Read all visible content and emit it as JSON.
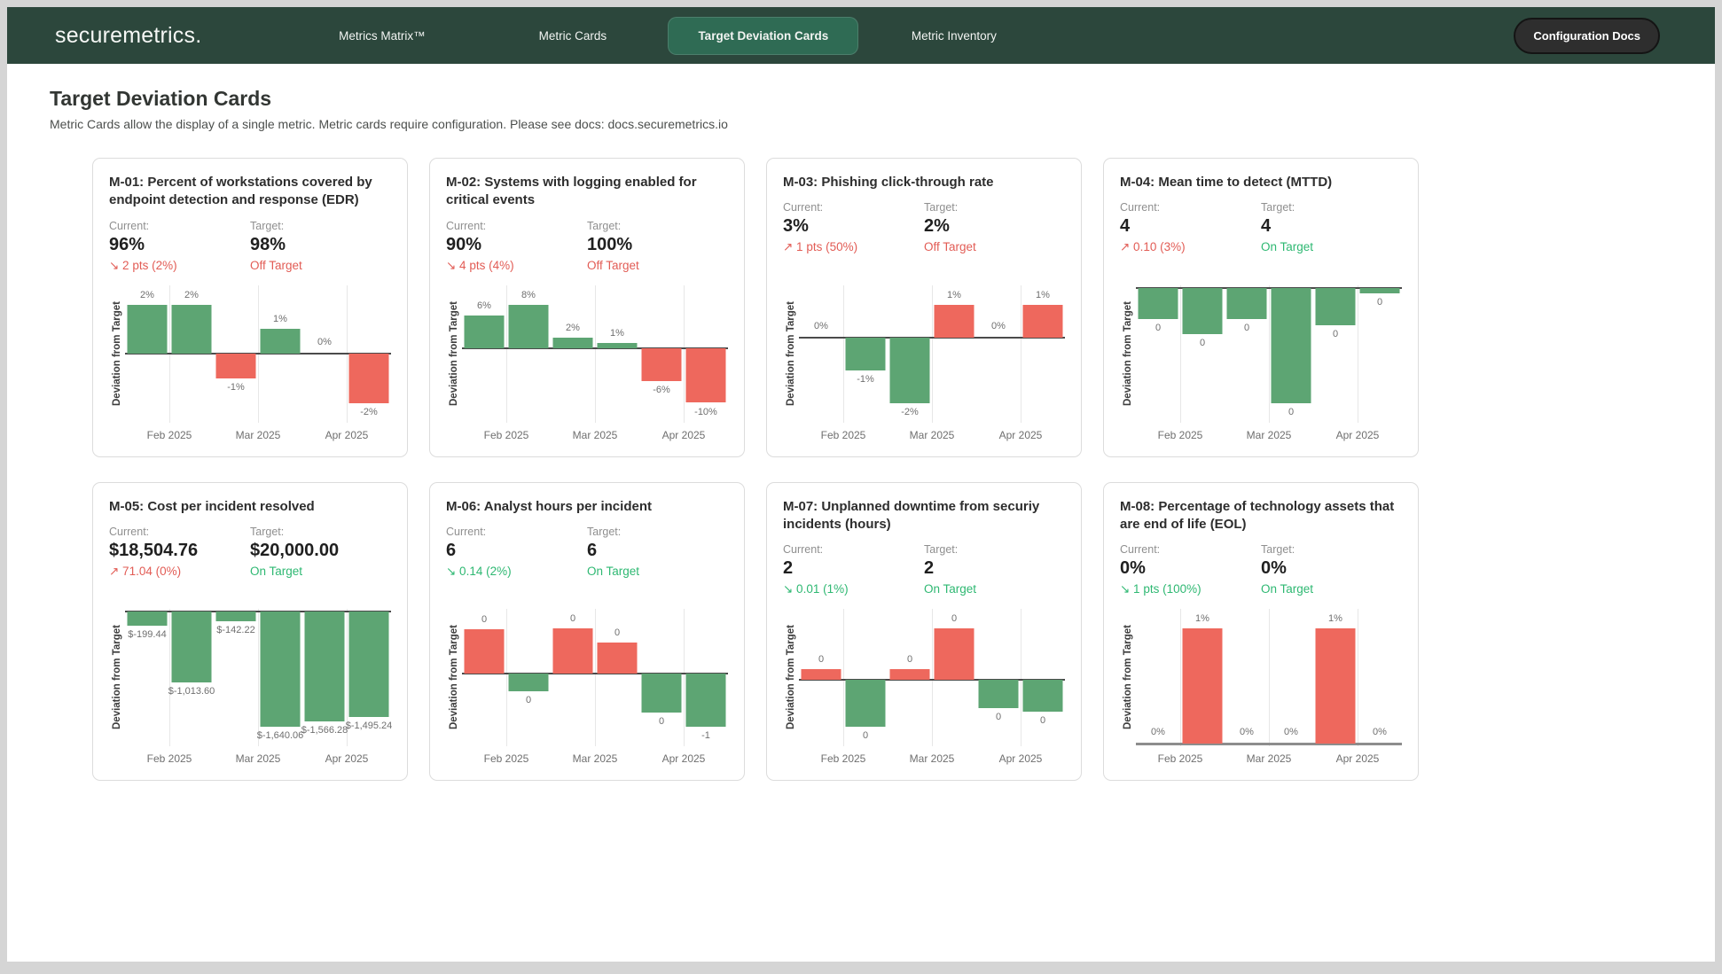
{
  "navbar": {
    "logo": "securemetrics.",
    "tabs": [
      {
        "label": "Metrics Matrix™",
        "active": false
      },
      {
        "label": "Metric Cards",
        "active": false
      },
      {
        "label": "Target Deviation Cards",
        "active": true
      },
      {
        "label": "Metric Inventory",
        "active": false
      }
    ],
    "docs_button": "Configuration Docs"
  },
  "page": {
    "title": "Target Deviation Cards",
    "subtitle": "Metric Cards allow the display of a single metric. Metric cards require configuration. Please see docs: docs.securemetrics.io"
  },
  "labels": {
    "current": "Current:",
    "target": "Target:"
  },
  "colors": {
    "navbar_bg": "#2c473c",
    "active_tab_bg": "#2f6b54",
    "bar_green": "#5da573",
    "bar_red": "#ee685d",
    "text_red": "#e25c55",
    "text_green": "#2eb872"
  },
  "chart_common": {
    "type": "bar",
    "ylabel": "Deviation from Target",
    "x_months": [
      "Feb 2025",
      "Mar 2025",
      "Apr 2025"
    ]
  },
  "cards": [
    {
      "id": "M-01",
      "title": "M-01: Percent of workstations covered by endpoint detection and response (EDR)",
      "current": "96%",
      "target": "98%",
      "delta": "↘ 2 pts (2%)",
      "delta_color": "red",
      "status": "Off Target",
      "status_color": "red",
      "chart": {
        "values": [
          2,
          2,
          -1,
          1,
          0,
          -2
        ],
        "labels": [
          "2%",
          "2%",
          "-1%",
          "1%",
          "0%",
          "-2%"
        ],
        "bar_colors": [
          "green",
          "green",
          "red",
          "green",
          null,
          "red"
        ]
      }
    },
    {
      "id": "M-02",
      "title": "M-02: Systems with logging enabled for critical events",
      "current": "90%",
      "target": "100%",
      "delta": "↘ 4 pts (4%)",
      "delta_color": "red",
      "status": "Off Target",
      "status_color": "red",
      "chart": {
        "values": [
          6,
          8,
          2,
          1,
          -6,
          -10
        ],
        "labels": [
          "6%",
          "8%",
          "2%",
          "1%",
          "-6%",
          "-10%"
        ],
        "bar_colors": [
          "green",
          "green",
          "green",
          "green",
          "red",
          "red"
        ]
      }
    },
    {
      "id": "M-03",
      "title": "M-03: Phishing click-through rate",
      "current": "3%",
      "target": "2%",
      "delta": "↗ 1 pts (50%)",
      "delta_color": "red",
      "status": "Off Target",
      "status_color": "red",
      "chart": {
        "values": [
          0,
          -1,
          -2,
          1,
          0,
          1
        ],
        "labels": [
          "0%",
          "-1%",
          "-2%",
          "1%",
          "0%",
          "1%"
        ],
        "bar_colors": [
          null,
          "green",
          "green",
          "red",
          null,
          "red"
        ]
      }
    },
    {
      "id": "M-04",
      "title": "M-04: Mean time to detect (MTTD)",
      "current": "4",
      "target": "4",
      "delta": "↗ 0.10 (3%)",
      "delta_color": "red",
      "status": "On Target",
      "status_color": "green",
      "chart": {
        "values": [
          -0.11,
          -0.16,
          -0.11,
          -0.4,
          -0.13,
          -0.02
        ],
        "labels": [
          "0",
          "0",
          "0",
          "0",
          "0",
          "0"
        ],
        "bar_colors": [
          "green",
          "green",
          "green",
          "green",
          "green",
          "green"
        ]
      }
    },
    {
      "id": "M-05",
      "title": "M-05: Cost per incident resolved",
      "current": "$18,504.76",
      "target": "$20,000.00",
      "delta": "↗ 71.04 (0%)",
      "delta_color": "red",
      "status": "On Target",
      "status_color": "green",
      "chart": {
        "values": [
          -199.44,
          -1013.6,
          -142.22,
          -1640.06,
          -1566.28,
          -1495.24
        ],
        "labels": [
          "$-199.44",
          "$-1,013.60",
          "$-142.22",
          "$-1,640.06",
          "$-1,566.28",
          "$-1,495.24"
        ],
        "bar_colors": [
          "green",
          "green",
          "green",
          "green",
          "green",
          "green"
        ]
      }
    },
    {
      "id": "M-06",
      "title": "M-06: Analyst hours per incident",
      "current": "6",
      "target": "6",
      "delta": "↘ 0.14 (2%)",
      "delta_color": "green",
      "status": "On Target",
      "status_color": "green",
      "chart": {
        "values": [
          0.45,
          -0.18,
          0.46,
          0.32,
          -0.4,
          -0.54
        ],
        "labels": [
          "0",
          "0",
          "0",
          "0",
          "0",
          "-1"
        ],
        "bar_colors": [
          "red",
          "green",
          "red",
          "red",
          "green",
          "green"
        ]
      }
    },
    {
      "id": "M-07",
      "title": "M-07: Unplanned downtime from securiy incidents (hours)",
      "current": "2",
      "target": "2",
      "delta": "↘ 0.01 (1%)",
      "delta_color": "green",
      "status": "On Target",
      "status_color": "green",
      "chart": {
        "values": [
          0.09,
          -0.41,
          0.09,
          0.45,
          -0.25,
          -0.28
        ],
        "labels": [
          "0",
          "0",
          "0",
          "0",
          "0",
          "0"
        ],
        "bar_colors": [
          "red",
          "green",
          "red",
          "red",
          "green",
          "green"
        ]
      }
    },
    {
      "id": "M-08",
      "title": "M-08: Percentage of technology assets that are end of life (EOL)",
      "current": "0%",
      "target": "0%",
      "delta": "↘ 1 pts (100%)",
      "delta_color": "green",
      "status": "On Target",
      "status_color": "green",
      "chart": {
        "values": [
          0,
          1,
          0,
          0,
          1,
          0
        ],
        "labels": [
          "0%",
          "1%",
          "0%",
          "0%",
          "1%",
          "0%"
        ],
        "bar_colors": [
          null,
          "red",
          null,
          null,
          "red",
          null
        ]
      }
    }
  ]
}
